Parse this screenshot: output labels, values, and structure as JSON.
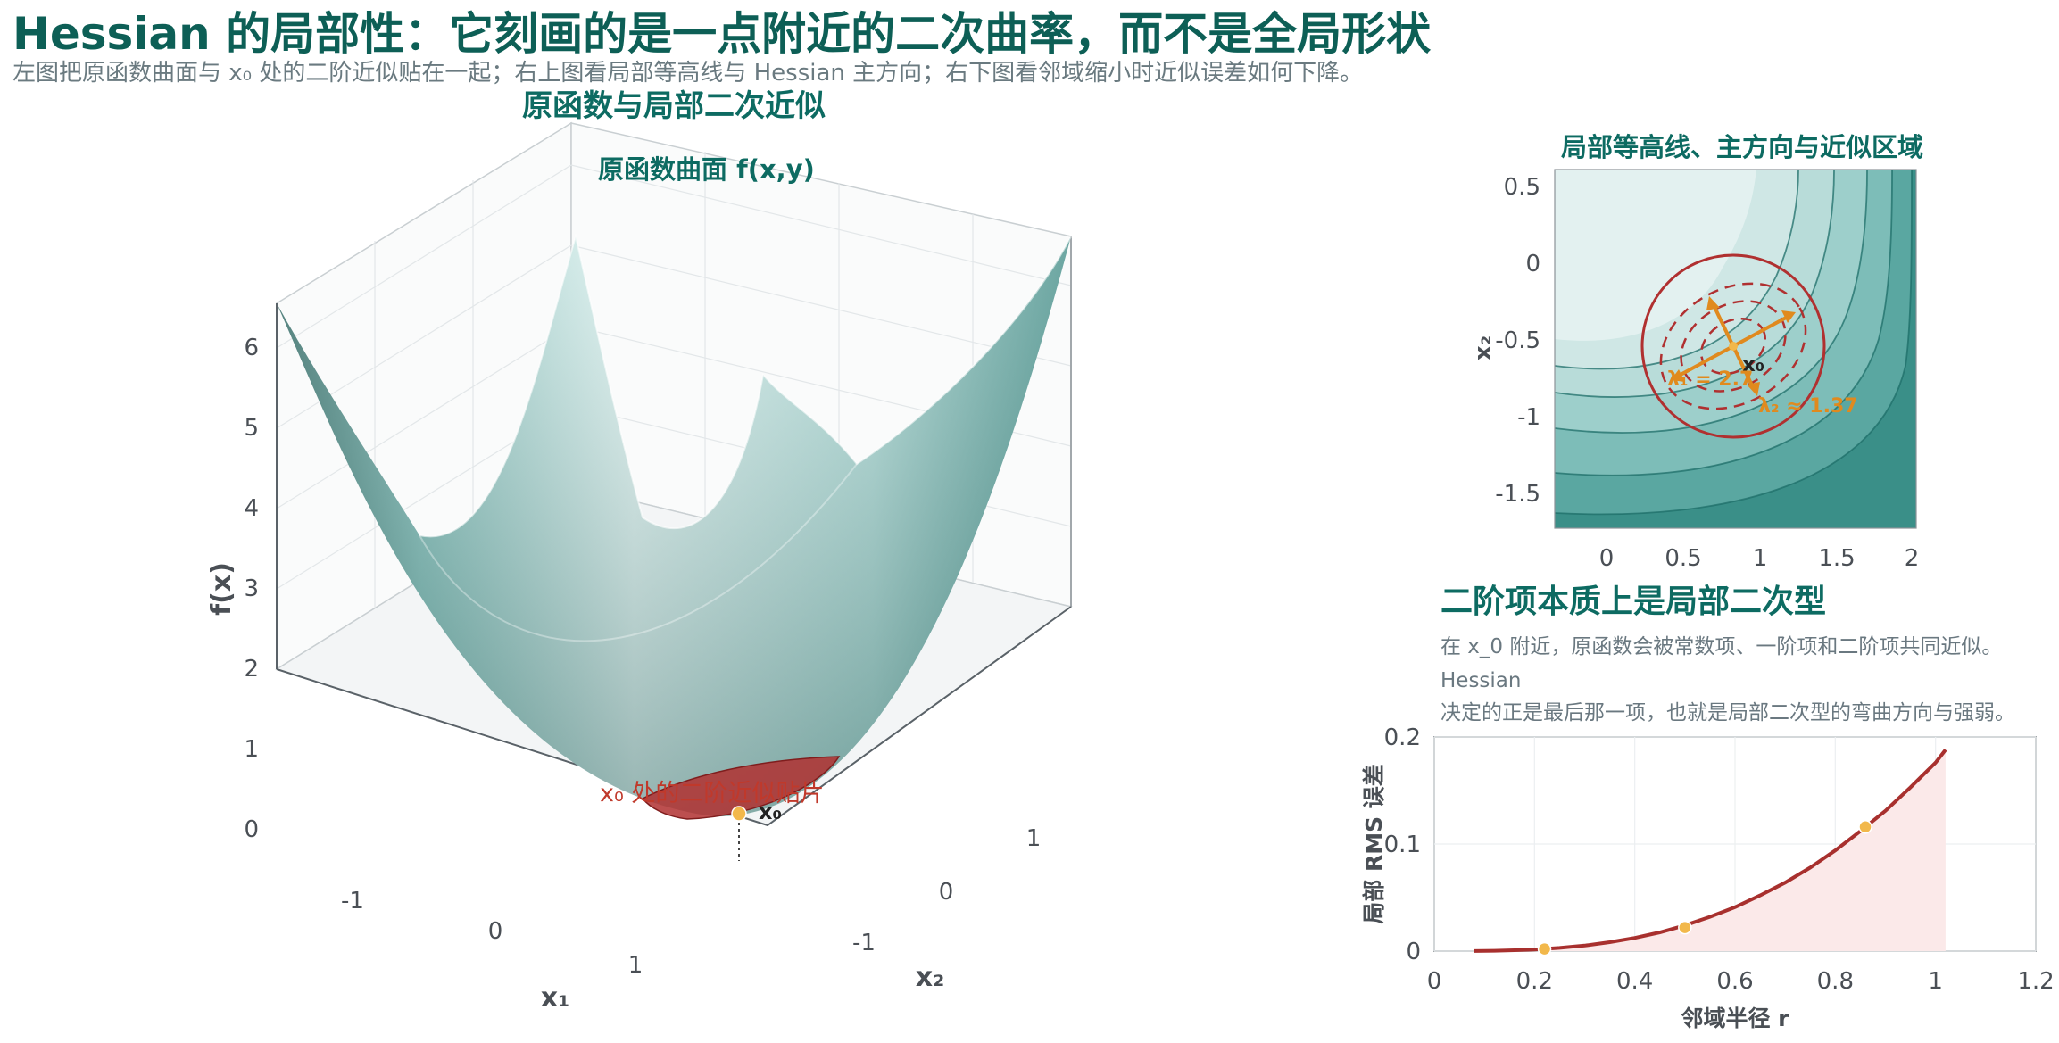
{
  "header": {
    "title": "Hessian 的局部性：它刻画的是一点附近的二次曲率，而不是全局形状",
    "subtitle": "左图把原函数曲面与  x₀  处的二阶近似贴在一起；右上图看局部等高线与  Hessian  主方向；右下图看邻域缩小时近似误差如何下降。"
  },
  "chart_data": [
    {
      "type": "surface3d",
      "title": "原函数与局部二次近似",
      "inner_title": "原函数曲面  f(x,y)",
      "xlabel": "x₁",
      "ylabel": "x₂",
      "zlabel": "f(x)",
      "x_ticks": [
        "-1",
        "0",
        "1"
      ],
      "y_ticks": [
        "-1",
        "0",
        "1"
      ],
      "z_ticks": [
        "0",
        "1",
        "2",
        "3",
        "4",
        "5",
        "6"
      ],
      "xlim": [
        -1.6,
        1.6
      ],
      "ylim": [
        -1.6,
        1.6
      ],
      "zlim": [
        0,
        6.6
      ],
      "point_label": "x₀",
      "patch_label": "x₀  处的二阶近似贴片",
      "colors": {
        "surface_light": "#d8efee",
        "surface_dark": "#1e5d58",
        "patch": "#b03030",
        "point": "#f2b84b"
      }
    },
    {
      "type": "contour",
      "title": "局部等高线、主方向与近似区域",
      "ylabel": "x₂",
      "x_ticks": [
        "0",
        "0.5",
        "1",
        "1.5",
        "2"
      ],
      "y_ticks": [
        "0.5",
        "0",
        "-0.5",
        "-1",
        "-1.5"
      ],
      "xlim": [
        -0.35,
        2.0
      ],
      "ylim": [
        -1.75,
        0.6
      ],
      "point": [
        0.83,
        -0.55
      ],
      "point_label": "x₀",
      "eigen_labels": [
        "λ₁ = 2.7",
        "λ₂ ≈ 1.37"
      ],
      "colors": {
        "circle": "#b03030",
        "arrows": "#e08a1e",
        "contour": "#1e6e68"
      }
    },
    {
      "type": "line",
      "title": "二阶项本质上是局部二次型",
      "notes": [
        "在 x_0 附近，原函数会被常数项、一阶项和二阶项共同近似。",
        "Hessian",
        "决定的正是最后那一项，也就是局部二次型的弯曲方向与强弱。"
      ],
      "xlabel": "邻域半径 r",
      "ylabel": "局部 RMS 误差",
      "x_ticks": [
        "0",
        "0.2",
        "0.4",
        "0.6",
        "0.8",
        "1",
        "1.2"
      ],
      "y_ticks": [
        "0",
        "0.1",
        "0.2"
      ],
      "xlim": [
        0,
        1.2
      ],
      "ylim": [
        0,
        0.2
      ],
      "x": [
        0.08,
        0.12,
        0.16,
        0.2,
        0.25,
        0.3,
        0.35,
        0.4,
        0.45,
        0.5,
        0.55,
        0.6,
        0.65,
        0.7,
        0.75,
        0.8,
        0.85,
        0.9,
        0.95,
        1.0,
        1.02
      ],
      "y": [
        0.0001,
        0.0003,
        0.0008,
        0.0015,
        0.003,
        0.0052,
        0.0083,
        0.0123,
        0.0175,
        0.024,
        0.032,
        0.041,
        0.052,
        0.064,
        0.078,
        0.094,
        0.112,
        0.131,
        0.153,
        0.176,
        0.188
      ],
      "markers": [
        [
          0.22,
          0.002
        ],
        [
          0.5,
          0.022
        ],
        [
          0.86,
          0.116
        ]
      ],
      "colors": {
        "line": "#a8302e",
        "fill": "#fbe9e9",
        "marker": "#f2b84b"
      }
    }
  ]
}
